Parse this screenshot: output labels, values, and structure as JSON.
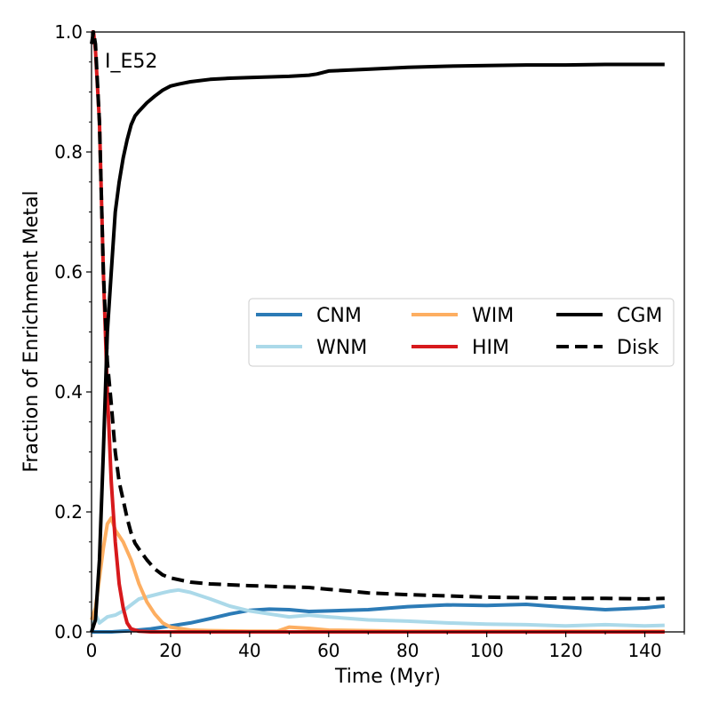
{
  "chart_data": {
    "type": "line",
    "annotation": "I_E52",
    "xlabel": "Time (Myr)",
    "ylabel": "Fraction of Enrichment Metal",
    "xlim": [
      0,
      150
    ],
    "ylim": [
      0,
      1.0
    ],
    "x_ticks": [
      0,
      20,
      40,
      60,
      80,
      100,
      120,
      140
    ],
    "y_ticks": [
      0.0,
      0.2,
      0.4,
      0.6,
      0.8,
      1.0
    ],
    "x_tick_labels": [
      "0",
      "20",
      "40",
      "60",
      "80",
      "100",
      "120",
      "140"
    ],
    "y_tick_labels": [
      "0.0",
      "0.2",
      "0.4",
      "0.6",
      "0.8",
      "1.0"
    ],
    "grid": false,
    "legend_placement": "center-right",
    "legend_columns": 3,
    "series": [
      {
        "name": "CNM",
        "color": "#2c7bb6",
        "dash": "solid",
        "x": [
          0,
          5,
          10,
          15,
          20,
          25,
          30,
          35,
          40,
          45,
          50,
          55,
          60,
          70,
          80,
          90,
          100,
          110,
          120,
          130,
          140,
          145
        ],
        "y": [
          0,
          0,
          0.002,
          0.005,
          0.01,
          0.015,
          0.022,
          0.03,
          0.036,
          0.038,
          0.037,
          0.034,
          0.035,
          0.037,
          0.042,
          0.045,
          0.044,
          0.046,
          0.041,
          0.037,
          0.04,
          0.043
        ]
      },
      {
        "name": "WNM",
        "color": "#abd9e9",
        "dash": "solid",
        "x": [
          0,
          1,
          2,
          4,
          6,
          8,
          10,
          12,
          15,
          18,
          20,
          22,
          25,
          30,
          35,
          40,
          45,
          50,
          55,
          60,
          70,
          80,
          90,
          100,
          110,
          120,
          130,
          140,
          145
        ],
        "y": [
          0,
          0.03,
          0.015,
          0.025,
          0.028,
          0.035,
          0.045,
          0.055,
          0.06,
          0.065,
          0.068,
          0.07,
          0.066,
          0.055,
          0.043,
          0.035,
          0.03,
          0.025,
          0.028,
          0.025,
          0.02,
          0.018,
          0.015,
          0.013,
          0.012,
          0.01,
          0.012,
          0.01,
          0.011
        ]
      },
      {
        "name": "WIM",
        "color": "#fdae61",
        "dash": "solid",
        "x": [
          0,
          1,
          2,
          3,
          4,
          5,
          6,
          7,
          8,
          10,
          12,
          14,
          16,
          18,
          20,
          25,
          30,
          40,
          47,
          50,
          55,
          60,
          70,
          80,
          100,
          120,
          145
        ],
        "y": [
          0.02,
          0.04,
          0.09,
          0.14,
          0.18,
          0.19,
          0.17,
          0.16,
          0.15,
          0.12,
          0.08,
          0.05,
          0.03,
          0.015,
          0.008,
          0.003,
          0.002,
          0.001,
          0.001,
          0.008,
          0.006,
          0.003,
          0.002,
          0.001,
          0.001,
          0.001,
          0.001
        ]
      },
      {
        "name": "HIM",
        "color": "#d7191c",
        "dash": "solid",
        "x": [
          0,
          0.5,
          1,
          2,
          3,
          4,
          5,
          6,
          7,
          8,
          9,
          10,
          12,
          15,
          20,
          145
        ],
        "y": [
          1.0,
          1.0,
          0.97,
          0.85,
          0.6,
          0.4,
          0.25,
          0.15,
          0.08,
          0.04,
          0.015,
          0.005,
          0.001,
          0,
          0,
          0
        ]
      },
      {
        "name": "CGM",
        "color": "#000000",
        "dash": "solid",
        "x": [
          0,
          1,
          2,
          3,
          4,
          5,
          6,
          7,
          8,
          9,
          10,
          11,
          12,
          14,
          16,
          18,
          20,
          22,
          25,
          30,
          35,
          40,
          50,
          55,
          57,
          60,
          70,
          80,
          90,
          100,
          110,
          120,
          130,
          140,
          145
        ],
        "y": [
          0,
          0.02,
          0.12,
          0.3,
          0.5,
          0.6,
          0.7,
          0.75,
          0.79,
          0.82,
          0.845,
          0.86,
          0.868,
          0.882,
          0.893,
          0.903,
          0.91,
          0.913,
          0.917,
          0.921,
          0.923,
          0.924,
          0.926,
          0.928,
          0.93,
          0.935,
          0.938,
          0.941,
          0.943,
          0.944,
          0.945,
          0.945,
          0.946,
          0.946,
          0.946
        ]
      },
      {
        "name": "Disk",
        "color": "#000000",
        "dash": "dashed",
        "x": [
          0,
          0.5,
          1,
          2,
          3,
          4,
          5,
          6,
          7,
          8,
          9,
          10,
          11,
          12,
          14,
          16,
          18,
          20,
          25,
          30,
          40,
          50,
          55,
          60,
          70,
          80,
          90,
          100,
          110,
          120,
          130,
          140,
          145
        ],
        "y": [
          0.98,
          1.0,
          0.98,
          0.85,
          0.6,
          0.45,
          0.38,
          0.3,
          0.25,
          0.22,
          0.19,
          0.165,
          0.148,
          0.138,
          0.12,
          0.105,
          0.095,
          0.09,
          0.083,
          0.08,
          0.077,
          0.075,
          0.074,
          0.071,
          0.065,
          0.062,
          0.06,
          0.058,
          0.057,
          0.056,
          0.056,
          0.055,
          0.056
        ]
      }
    ]
  }
}
